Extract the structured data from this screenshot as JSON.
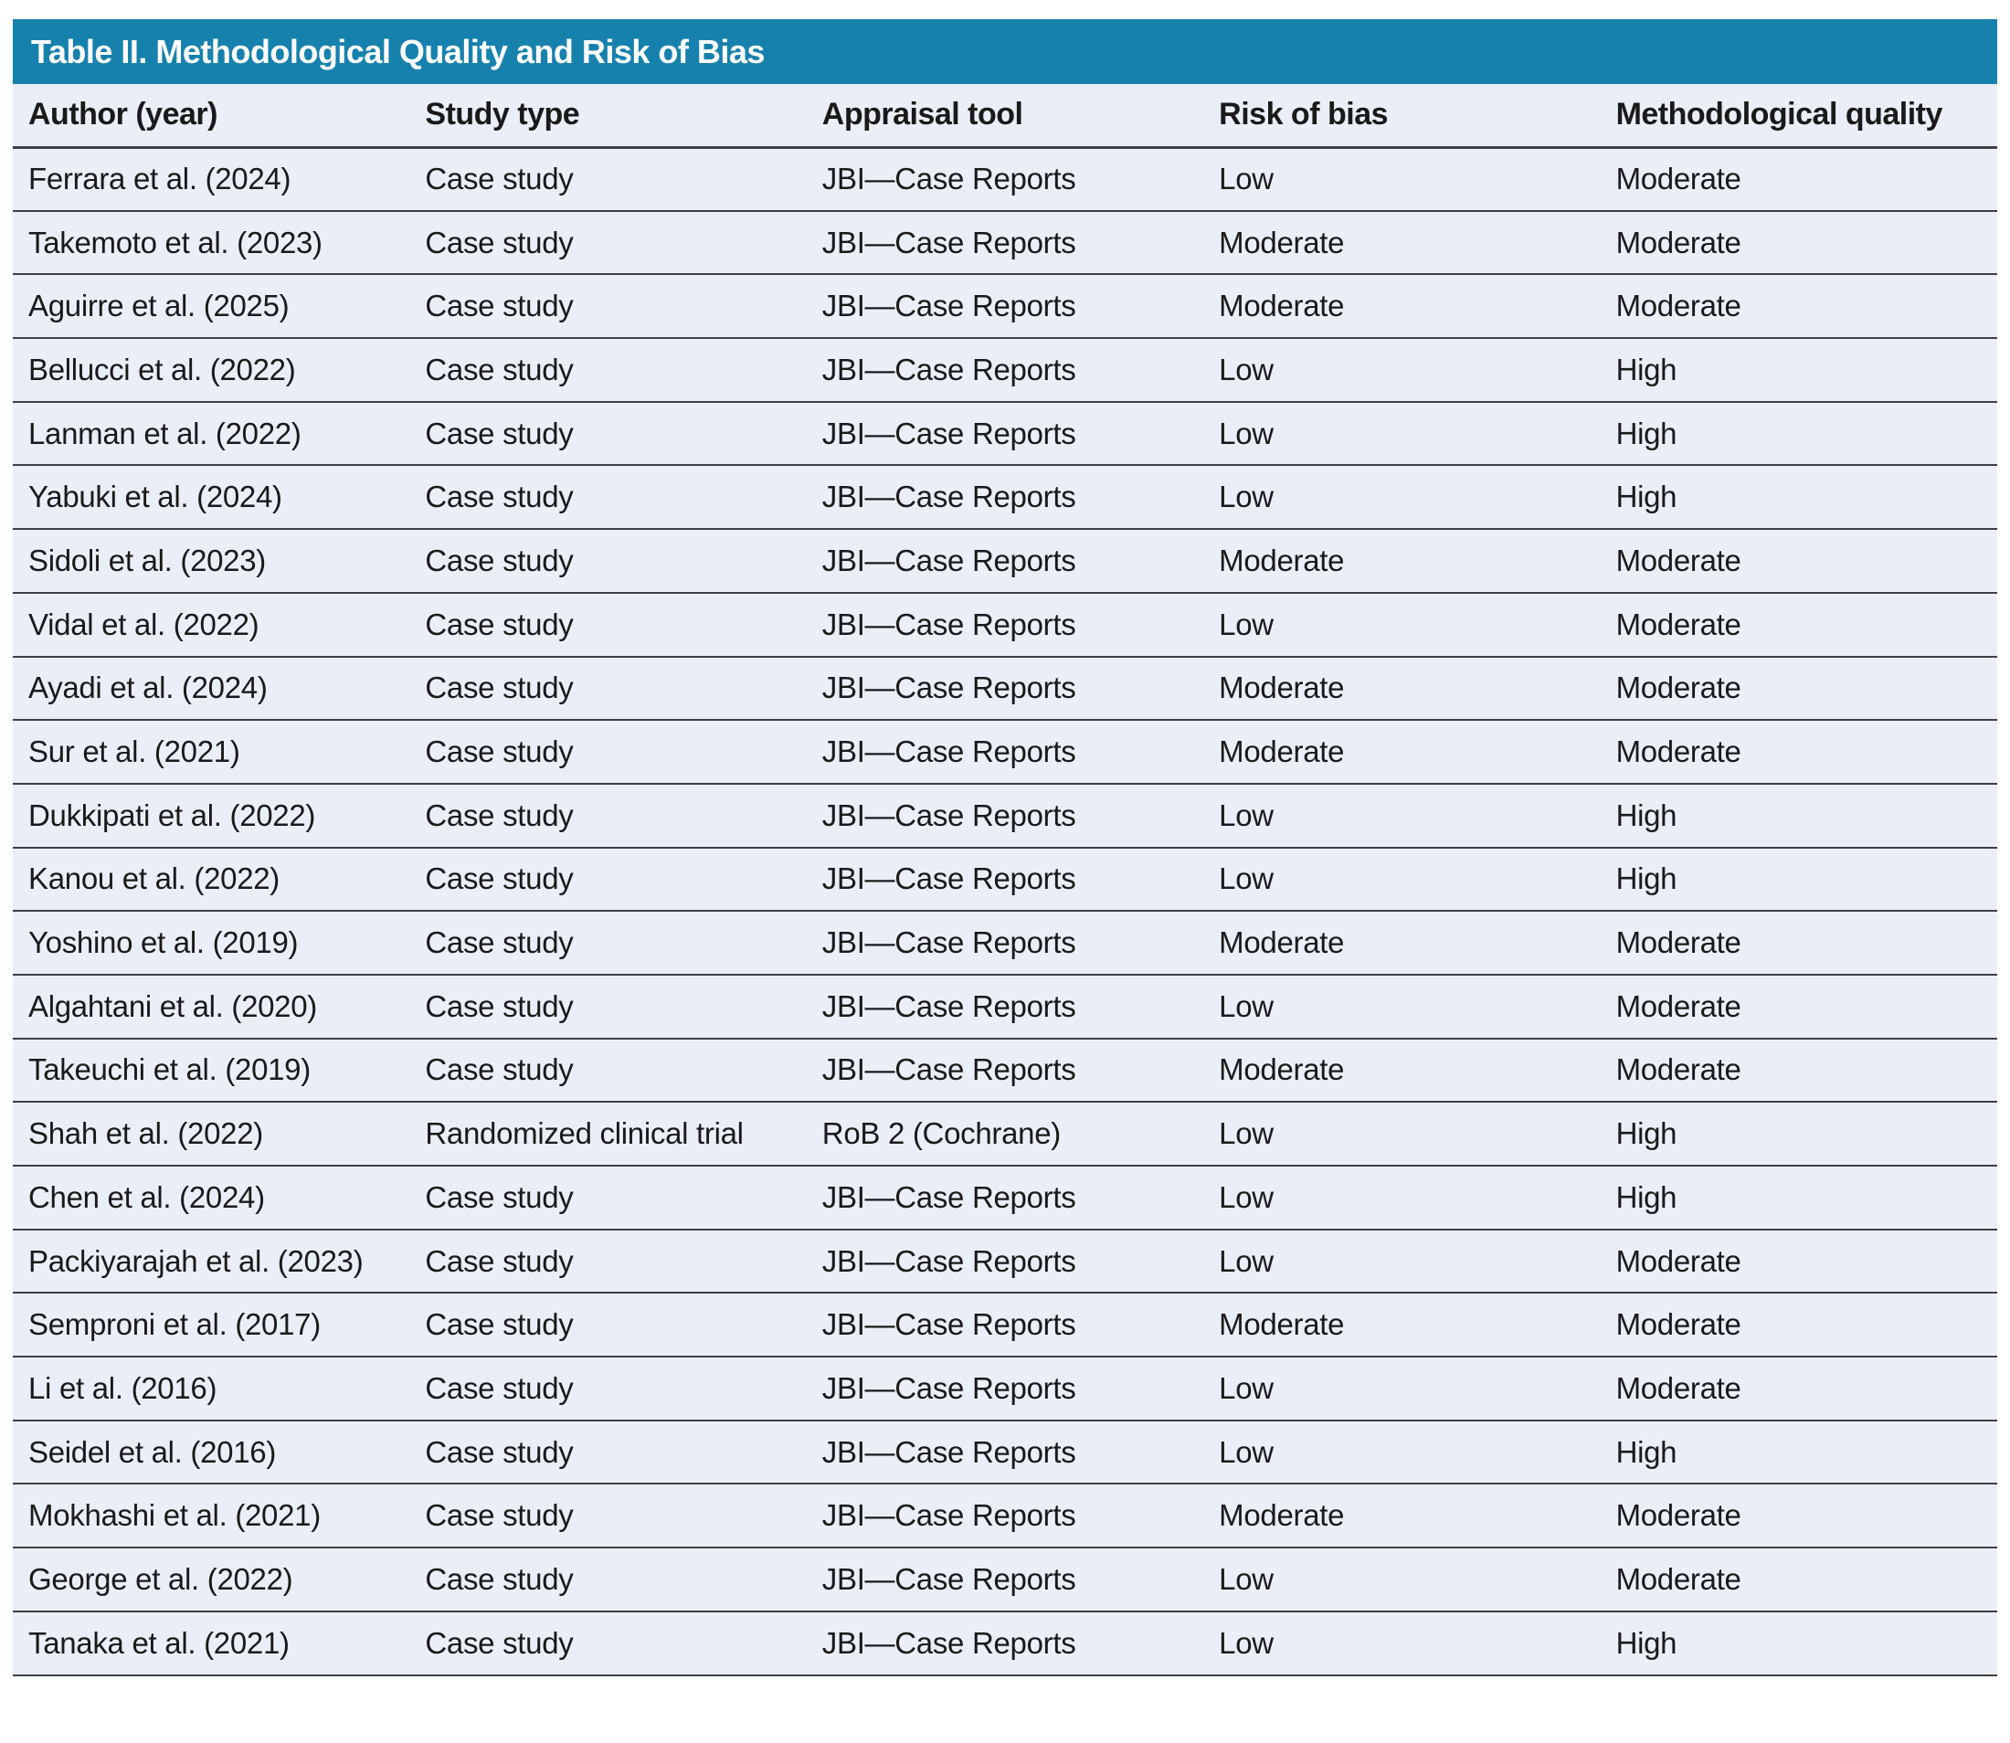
{
  "theme": {
    "accent": "#1781AE",
    "row-bg": "#EAEFF7",
    "rule": "#3C4043",
    "text": "#1A1A1A",
    "title-text": "#FFFFFF"
  },
  "table": {
    "title": "Table II. Methodological Quality and Risk of Bias",
    "columns": [
      "Author (year)",
      "Study type",
      "Appraisal tool",
      "Risk of bias",
      "Methodological quality"
    ],
    "rows": [
      [
        "Ferrara et al. (2024)",
        "Case study",
        "JBI—Case Reports",
        "Low",
        "Moderate"
      ],
      [
        "Takemoto et al. (2023)",
        "Case study",
        "JBI—Case Reports",
        "Moderate",
        "Moderate"
      ],
      [
        "Aguirre et al. (2025)",
        "Case study",
        "JBI—Case Reports",
        "Moderate",
        "Moderate"
      ],
      [
        "Bellucci et al. (2022)",
        "Case study",
        "JBI—Case Reports",
        "Low",
        "High"
      ],
      [
        "Lanman et al. (2022)",
        "Case study",
        "JBI—Case Reports",
        "Low",
        "High"
      ],
      [
        "Yabuki et al. (2024)",
        "Case study",
        "JBI—Case Reports",
        "Low",
        "High"
      ],
      [
        "Sidoli et al. (2023)",
        "Case study",
        "JBI—Case Reports",
        "Moderate",
        "Moderate"
      ],
      [
        "Vidal et al. (2022)",
        "Case study",
        "JBI—Case Reports",
        "Low",
        "Moderate"
      ],
      [
        "Ayadi et al. (2024)",
        "Case study",
        "JBI—Case Reports",
        "Moderate",
        "Moderate"
      ],
      [
        "Sur et al. (2021)",
        "Case study",
        "JBI—Case Reports",
        "Moderate",
        "Moderate"
      ],
      [
        "Dukkipati et al. (2022)",
        "Case study",
        "JBI—Case Reports",
        "Low",
        "High"
      ],
      [
        "Kanou et al. (2022)",
        "Case study",
        "JBI—Case Reports",
        "Low",
        "High"
      ],
      [
        "Yoshino et al. (2019)",
        "Case study",
        "JBI—Case Reports",
        "Moderate",
        "Moderate"
      ],
      [
        "Algahtani et al. (2020)",
        "Case study",
        "JBI—Case Reports",
        "Low",
        "Moderate"
      ],
      [
        "Takeuchi et al. (2019)",
        "Case study",
        "JBI—Case Reports",
        "Moderate",
        "Moderate"
      ],
      [
        "Shah et al. (2022)",
        "Randomized clinical trial",
        "RoB 2 (Cochrane)",
        "Low",
        "High"
      ],
      [
        "Chen et al. (2024)",
        "Case study",
        "JBI—Case Reports",
        "Low",
        "High"
      ],
      [
        "Packiyarajah et al. (2023)",
        "Case study",
        "JBI—Case Reports",
        "Low",
        "Moderate"
      ],
      [
        "Semproni et al. (2017)",
        "Case study",
        "JBI—Case Reports",
        "Moderate",
        "Moderate"
      ],
      [
        "Li et al. (2016)",
        "Case study",
        "JBI—Case Reports",
        "Low",
        "Moderate"
      ],
      [
        "Seidel et al. (2016)",
        "Case study",
        "JBI—Case Reports",
        "Low",
        "High"
      ],
      [
        "Mokhashi et al. (2021)",
        "Case study",
        "JBI—Case Reports",
        "Moderate",
        "Moderate"
      ],
      [
        "George et al. (2022)",
        "Case study",
        "JBI—Case Reports",
        "Low",
        "Moderate"
      ],
      [
        "Tanaka et al. (2021)",
        "Case study",
        "JBI—Case Reports",
        "Low",
        "High"
      ]
    ]
  }
}
